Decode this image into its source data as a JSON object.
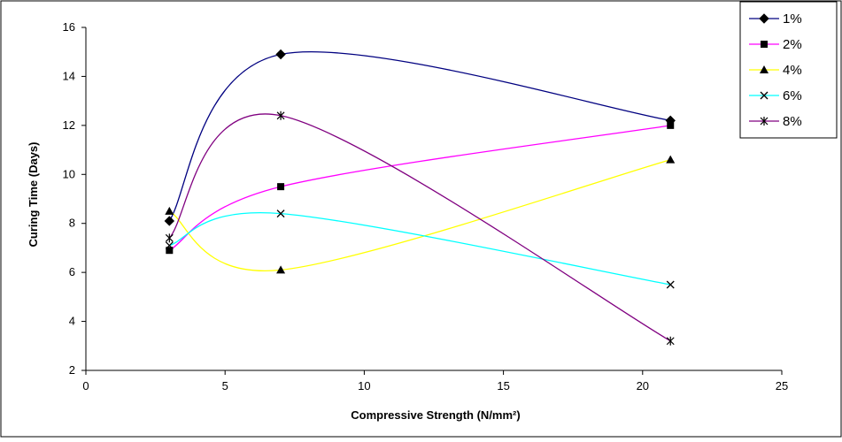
{
  "chart_data": {
    "type": "line",
    "title": "",
    "xlabel": "Compressive Strength (N/mm²)",
    "ylabel": "Curing Time (Days)",
    "xlim": [
      0,
      25
    ],
    "ylim": [
      2,
      16
    ],
    "xticks": [
      0,
      5,
      10,
      15,
      20,
      25
    ],
    "yticks": [
      2,
      4,
      6,
      8,
      10,
      12,
      14,
      16
    ],
    "smooth": true,
    "grid": false,
    "legend_position": "top-right",
    "series": [
      {
        "name": "1%",
        "color": "#000080",
        "marker": "diamond",
        "x": [
          3,
          7,
          21
        ],
        "y": [
          8.1,
          14.9,
          12.2
        ]
      },
      {
        "name": "2%",
        "color": "#FF00FF",
        "marker": "square",
        "x": [
          3,
          7,
          21
        ],
        "y": [
          6.9,
          9.5,
          12.0
        ]
      },
      {
        "name": "4%",
        "color": "#FFFF00",
        "marker": "triangle",
        "x": [
          3,
          7,
          21
        ],
        "y": [
          8.5,
          6.1,
          10.6
        ]
      },
      {
        "name": "6%",
        "color": "#00FFFF",
        "marker": "x",
        "x": [
          3,
          7,
          21
        ],
        "y": [
          7.1,
          8.4,
          5.5
        ]
      },
      {
        "name": "8%",
        "color": "#800080",
        "marker": "star",
        "x": [
          3,
          7,
          21
        ],
        "y": [
          7.4,
          12.4,
          3.2
        ]
      }
    ]
  }
}
